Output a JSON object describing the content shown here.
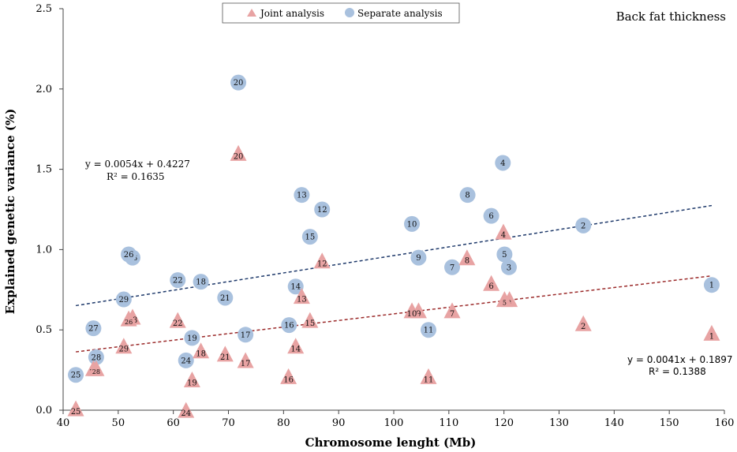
{
  "chart_data": {
    "type": "scatter",
    "title": "Back fat thickness",
    "xlabel": "Chromosome lenght (Mb)",
    "ylabel": "Explained genetic variance (%)",
    "xlim": [
      40,
      160
    ],
    "ylim": [
      0,
      2.5
    ],
    "x_ticks": [
      40,
      50,
      60,
      70,
      80,
      90,
      100,
      110,
      120,
      130,
      140,
      150,
      160
    ],
    "y_ticks": [
      "0.0",
      "0.5",
      "1.0",
      "1.5",
      "2.0",
      "2.5"
    ],
    "legend": [
      "Joint analysis",
      "Separate analysis"
    ],
    "colors": {
      "joint": "#e8a3a3",
      "separate": "#a9c1de",
      "joint_trend": "#9b2a2a",
      "separate_trend": "#1f3a6b"
    },
    "series": [
      {
        "name": "Separate analysis",
        "marker": "circle",
        "points": [
          {
            "label": "1",
            "x": 157.7,
            "y": 0.78
          },
          {
            "label": "2",
            "x": 134.4,
            "y": 1.15
          },
          {
            "label": "3",
            "x": 120.9,
            "y": 0.89
          },
          {
            "label": "4",
            "x": 119.8,
            "y": 1.54
          },
          {
            "label": "5",
            "x": 120.1,
            "y": 0.97
          },
          {
            "label": "6",
            "x": 117.7,
            "y": 1.21
          },
          {
            "label": "7",
            "x": 110.6,
            "y": 0.89
          },
          {
            "label": "8",
            "x": 113.4,
            "y": 1.34
          },
          {
            "label": "9",
            "x": 104.5,
            "y": 0.95
          },
          {
            "label": "10",
            "x": 103.3,
            "y": 1.16
          },
          {
            "label": "11",
            "x": 106.3,
            "y": 0.5
          },
          {
            "label": "12",
            "x": 87.0,
            "y": 1.25
          },
          {
            "label": "13",
            "x": 83.3,
            "y": 1.34
          },
          {
            "label": "14",
            "x": 82.2,
            "y": 0.77
          },
          {
            "label": "15",
            "x": 84.8,
            "y": 1.08
          },
          {
            "label": "16",
            "x": 81.0,
            "y": 0.53
          },
          {
            "label": "17",
            "x": 73.1,
            "y": 0.47
          },
          {
            "label": "18",
            "x": 65.0,
            "y": 0.8
          },
          {
            "label": "19",
            "x": 63.4,
            "y": 0.45
          },
          {
            "label": "20",
            "x": 71.8,
            "y": 2.04
          },
          {
            "label": "21",
            "x": 69.4,
            "y": 0.7
          },
          {
            "label": "22",
            "x": 60.8,
            "y": 0.81
          },
          {
            "label": "23",
            "x": 52.6,
            "y": 0.95
          },
          {
            "label": "24",
            "x": 62.3,
            "y": 0.31
          },
          {
            "label": "25",
            "x": 42.3,
            "y": 0.22
          },
          {
            "label": "26",
            "x": 51.9,
            "y": 0.97
          },
          {
            "label": "27",
            "x": 45.5,
            "y": 0.51
          },
          {
            "label": "28",
            "x": 46.0,
            "y": 0.33
          },
          {
            "label": "29",
            "x": 51.0,
            "y": 0.69
          }
        ]
      },
      {
        "name": "Joint analysis",
        "marker": "triangle",
        "points": [
          {
            "label": "1",
            "x": 157.7,
            "y": 0.47
          },
          {
            "label": "2",
            "x": 134.4,
            "y": 0.53
          },
          {
            "label": "3",
            "x": 121.0,
            "y": 0.68
          },
          {
            "label": "4",
            "x": 119.9,
            "y": 1.1
          },
          {
            "label": "5",
            "x": 120.1,
            "y": 0.68
          },
          {
            "label": "6",
            "x": 117.7,
            "y": 0.78
          },
          {
            "label": "7",
            "x": 110.6,
            "y": 0.61
          },
          {
            "label": "8",
            "x": 113.3,
            "y": 0.94
          },
          {
            "label": "9",
            "x": 104.5,
            "y": 0.61
          },
          {
            "label": "10",
            "x": 103.3,
            "y": 0.61
          },
          {
            "label": "11",
            "x": 106.3,
            "y": 0.2
          },
          {
            "label": "12",
            "x": 87.0,
            "y": 0.92
          },
          {
            "label": "13",
            "x": 83.3,
            "y": 0.7
          },
          {
            "label": "14",
            "x": 82.2,
            "y": 0.39
          },
          {
            "label": "15",
            "x": 84.8,
            "y": 0.55
          },
          {
            "label": "16",
            "x": 80.9,
            "y": 0.2
          },
          {
            "label": "17",
            "x": 73.1,
            "y": 0.3
          },
          {
            "label": "18",
            "x": 65.0,
            "y": 0.36
          },
          {
            "label": "19",
            "x": 63.4,
            "y": 0.18
          },
          {
            "label": "20",
            "x": 71.8,
            "y": 1.59
          },
          {
            "label": "21",
            "x": 69.4,
            "y": 0.34
          },
          {
            "label": "22",
            "x": 60.8,
            "y": 0.55
          },
          {
            "label": "23",
            "x": 52.6,
            "y": 0.57
          },
          {
            "label": "24",
            "x": 62.3,
            "y": -0.01
          },
          {
            "label": "25",
            "x": 42.3,
            "y": 0.0
          },
          {
            "label": "26",
            "x": 51.9,
            "y": 0.56
          },
          {
            "label": "27",
            "x": 45.5,
            "y": 0.25
          },
          {
            "label": "28",
            "x": 46.0,
            "y": 0.25
          },
          {
            "label": "29",
            "x": 51.0,
            "y": 0.39
          }
        ]
      }
    ],
    "trendlines": [
      {
        "series": "Separate analysis",
        "slope": 0.0054,
        "intercept": 0.4227,
        "equation": "y = 0.0054x + 0.4227",
        "r2": "R² = 0.1635",
        "x_range": [
          42.3,
          157.7
        ]
      },
      {
        "series": "Joint analysis",
        "slope": 0.0041,
        "intercept": 0.1897,
        "equation": "y = 0.0041x + 0.1897",
        "r2": "R² = 0.1388",
        "x_range": [
          42.3,
          157.7
        ]
      }
    ]
  }
}
